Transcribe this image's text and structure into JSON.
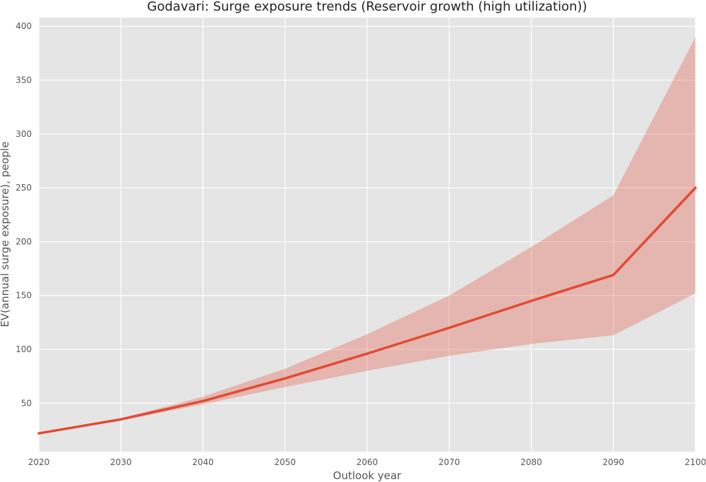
{
  "chart_data": {
    "type": "line",
    "title": "Godavari: Surge exposure trends (Reservoir growth (high utilization))",
    "xlabel": "Outlook year",
    "ylabel": "EV(annual surge exposure), people",
    "xlim": [
      2020,
      2100
    ],
    "ylim": [
      5,
      408
    ],
    "xticks": [
      2020,
      2030,
      2040,
      2050,
      2060,
      2070,
      2080,
      2090,
      2100
    ],
    "yticks": [
      50,
      100,
      150,
      200,
      250,
      300,
      350,
      400
    ],
    "grid": true,
    "series": [
      {
        "color": "#e24a33",
        "x": [
          2020,
          2030,
          2040,
          2050,
          2060,
          2070,
          2080,
          2090,
          2100
        ],
        "y": [
          22,
          35,
          52,
          73,
          96,
          120,
          145,
          169,
          250
        ],
        "lower": [
          22,
          34,
          49,
          65,
          80,
          94,
          105,
          113,
          152
        ],
        "upper": [
          22,
          36,
          56,
          82,
          114,
          150,
          195,
          243,
          390
        ]
      }
    ]
  }
}
